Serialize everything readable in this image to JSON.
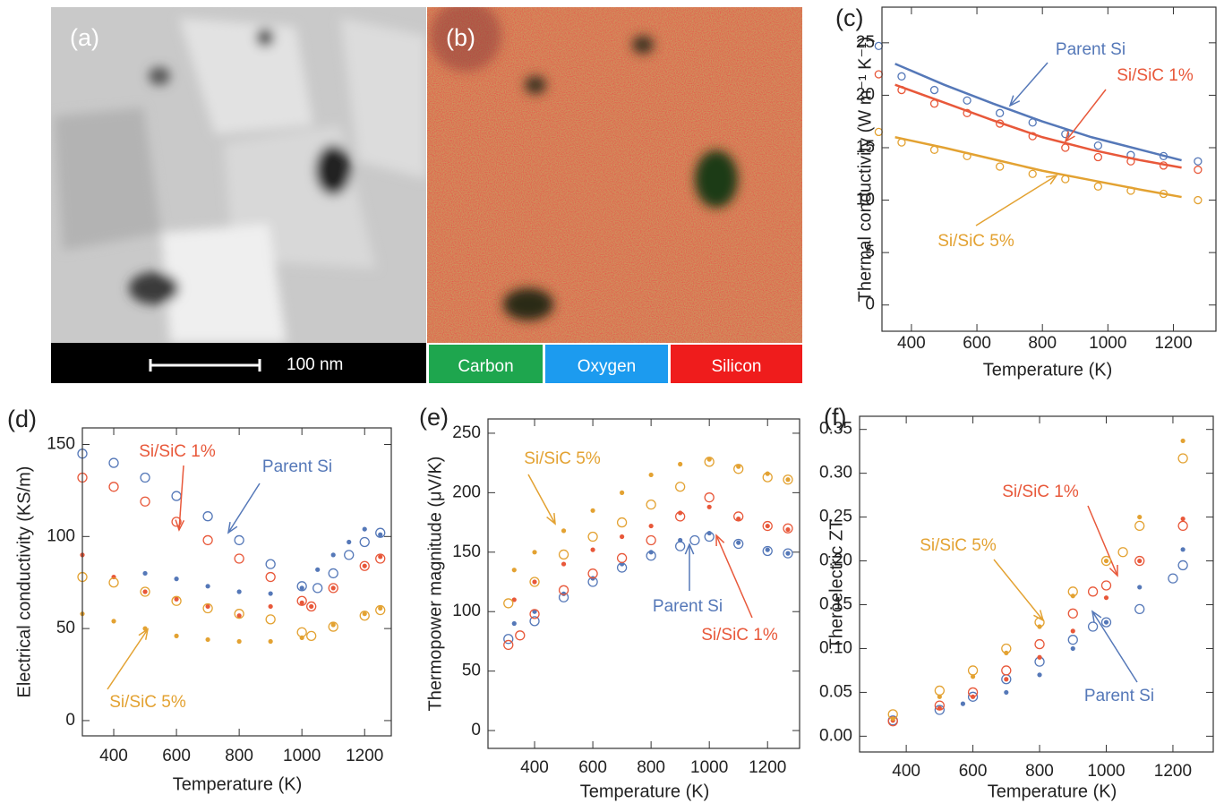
{
  "images": [
    {
      "label": "(a)",
      "scale_bar": "100 nm"
    },
    {
      "label": "(b)",
      "legend": [
        {
          "label": "Carbon",
          "color": "#1ea64e"
        },
        {
          "label": "Oxygen",
          "color": "#1c9bef"
        },
        {
          "label": "Silicon",
          "color": "#ef1c1c"
        }
      ]
    }
  ],
  "chart_data": [
    {
      "type": "scatter",
      "panel": "(c)",
      "x_label": "Temperature (K)",
      "y_label": "Thermal conductivity (W m⁻¹ K⁻¹)",
      "xlim": [
        310,
        1330
      ],
      "ylim": [
        -2.5,
        28.4
      ],
      "xticks": [
        400,
        600,
        800,
        1000,
        1200
      ],
      "yticks": [
        0,
        5,
        10,
        15,
        20,
        25
      ],
      "series": [
        {
          "name": "Parent Si",
          "color": "#5578b8",
          "open": {
            "x": [
              300,
              370,
              470,
              570,
              670,
              770,
              870,
              970,
              1070,
              1170,
              1275
            ],
            "values": [
              24.7,
              21.8,
              20.5,
              19.5,
              18.3,
              17.4,
              16.3,
              15.2,
              14.3,
              14.2,
              13.7
            ]
          },
          "fit_x": [
            350,
            500,
            650,
            800,
            950,
            1100,
            1225
          ],
          "fit": [
            23,
            21,
            19.2,
            17.5,
            16,
            14.8,
            13.8
          ]
        },
        {
          "name": "Si/SiC 1%",
          "color": "#e8583a",
          "open": {
            "x": [
              300,
              370,
              470,
              570,
              670,
              770,
              870,
              970,
              1070,
              1170,
              1275
            ],
            "values": [
              22,
              20.5,
              19.2,
              18.3,
              17.3,
              16.1,
              15,
              14.1,
              13.7,
              13.3,
              12.9
            ]
          },
          "fit_x": [
            350,
            500,
            650,
            800,
            950,
            1100,
            1225
          ],
          "fit": [
            21,
            19.3,
            17.6,
            16,
            14.8,
            13.8,
            13.1
          ]
        },
        {
          "name": "Si/SiC 5%",
          "color": "#e3a232",
          "open": {
            "x": [
              300,
              370,
              470,
              570,
              670,
              770,
              870,
              970,
              1070,
              1170,
              1275
            ],
            "values": [
              16.5,
              15.5,
              14.8,
              14.2,
              13.2,
              12.5,
              12,
              11.3,
              10.9,
              10.6,
              10
            ]
          },
          "fit_x": [
            350,
            500,
            650,
            800,
            950,
            1100,
            1225
          ],
          "fit": [
            16,
            15,
            13.9,
            12.8,
            11.9,
            11,
            10.3
          ]
        }
      ]
    },
    {
      "type": "scatter",
      "panel": "(d)",
      "x_label": "Temperature (K)",
      "y_label": "Electrical conductivity (KS/m)",
      "xlim": [
        300,
        1285
      ],
      "ylim": [
        -8.3,
        159
      ],
      "xticks": [
        400,
        600,
        800,
        1000,
        1200
      ],
      "yticks": [
        0,
        50,
        100,
        150
      ],
      "series": [
        {
          "name": "Parent Si",
          "color": "#5578b8",
          "open": {
            "x": [
              300,
              400,
              500,
              600,
              700,
              800,
              900,
              1000,
              1050,
              1100,
              1150,
              1200,
              1250
            ],
            "values": [
              145,
              140,
              132,
              122,
              111,
              98,
              85,
              73,
              72,
              80,
              90,
              97,
              102
            ]
          },
          "filled": {
            "x": [
              500,
              600,
              700,
              800,
              900,
              1000,
              1050,
              1100,
              1150,
              1200,
              1250
            ],
            "values": [
              80,
              77,
              73,
              70,
              69,
              72,
              82,
              90,
              97,
              104,
              101
            ]
          }
        },
        {
          "name": "Si/SiC 1%",
          "color": "#e8583a",
          "open": {
            "x": [
              300,
              400,
              500,
              600,
              700,
              800,
              900,
              1000,
              1030,
              1100,
              1200,
              1250
            ],
            "values": [
              132,
              127,
              119,
              108,
              98,
              88,
              78,
              65,
              62,
              72,
              84,
              88
            ]
          },
          "filled": {
            "x": [
              300,
              400,
              500,
              600,
              700,
              800,
              900,
              1000,
              1030,
              1100,
              1200,
              1250
            ],
            "values": [
              90,
              78,
              70,
              66,
              62,
              57,
              62,
              64,
              62,
              72,
              84,
              89
            ]
          }
        },
        {
          "name": "Si/SiC 5%",
          "color": "#e3a232",
          "open": {
            "x": [
              300,
              400,
              500,
              600,
              700,
              800,
              900,
              1000,
              1030,
              1100,
              1200,
              1250
            ],
            "values": [
              78,
              75,
              70,
              65,
              61,
              58,
              55,
              48,
              46,
              51,
              57,
              60
            ]
          },
          "filled": {
            "x": [
              300,
              400,
              500,
              600,
              700,
              800,
              900,
              1000,
              1100,
              1200,
              1250
            ],
            "values": [
              58,
              54,
              50,
              46,
              44,
              43,
              43,
              45,
              52,
              58,
              61
            ]
          }
        }
      ]
    },
    {
      "type": "scatter",
      "panel": "(e)",
      "x_label": "Temperature (K)",
      "y_label": "Thermopower magnitude (μV/K)",
      "xlim": [
        240,
        1310
      ],
      "ylim": [
        -15,
        262
      ],
      "xticks": [
        400,
        600,
        800,
        1000,
        1200
      ],
      "yticks": [
        0,
        50,
        100,
        150,
        200,
        250
      ],
      "series": [
        {
          "name": "Parent Si",
          "color": "#5578b8",
          "open": {
            "x": [
              310,
              400,
              500,
              600,
              700,
              800,
              900,
              950,
              1000,
              1100,
              1200,
              1270
            ],
            "values": [
              77,
              92,
              112,
              125,
              137,
              147,
              155,
              160,
              163,
              157,
              151,
              149
            ]
          },
          "filled": {
            "x": [
              330,
              400,
              500,
              600,
              700,
              800,
              900,
              1000,
              1100,
              1200,
              1270
            ],
            "values": [
              90,
              100,
              115,
              128,
              140,
              150,
              160,
              166,
              158,
              152,
              149
            ]
          }
        },
        {
          "name": "Si/SiC 1%",
          "color": "#e8583a",
          "open": {
            "x": [
              310,
              350,
              400,
              500,
              600,
              700,
              800,
              900,
              1000,
              1100,
              1200,
              1270
            ],
            "values": [
              72,
              80,
              98,
              118,
              132,
              145,
              160,
              180,
              196,
              180,
              172,
              170
            ]
          },
          "filled": {
            "x": [
              330,
              400,
              500,
              600,
              700,
              800,
              900,
              1000,
              1100,
              1200,
              1270
            ],
            "values": [
              110,
              125,
              140,
              152,
              163,
              172,
              183,
              188,
              178,
              172,
              169
            ]
          }
        },
        {
          "name": "Si/SiC 5%",
          "color": "#e3a232",
          "open": {
            "x": [
              310,
              400,
              500,
              600,
              700,
              800,
              900,
              1000,
              1100,
              1200,
              1270
            ],
            "values": [
              107,
              125,
              148,
              163,
              175,
              190,
              205,
              226,
              220,
              213,
              211
            ]
          },
          "filled": {
            "x": [
              330,
              400,
              500,
              600,
              700,
              800,
              900,
              1000,
              1100,
              1200,
              1270
            ],
            "values": [
              135,
              150,
              168,
              185,
              200,
              215,
              224,
              228,
              222,
              216,
              211
            ]
          }
        }
      ]
    },
    {
      "type": "scatter",
      "panel": "(f)",
      "x_label": "Temperature (K)",
      "y_label": "Theroelectric ZT",
      "xlim": [
        260,
        1321
      ],
      "ylim": [
        -0.018,
        0.365
      ],
      "xticks": [
        400,
        600,
        800,
        1000,
        1200
      ],
      "yticks": [
        {
          "value": 0,
          "label": "0.00"
        },
        0.05,
        {
          "value": 0.1,
          "label": "0.10"
        },
        0.15,
        {
          "value": 0.2,
          "label": "0.20"
        },
        0.25,
        {
          "value": 0.3,
          "label": "0.30"
        },
        0.35
      ],
      "series": [
        {
          "name": "Parent Si",
          "color": "#5578b8",
          "open": {
            "x": [
              360,
              500,
              600,
              700,
              800,
              900,
              960,
              1000,
              1100,
              1200,
              1230
            ],
            "values": [
              0.018,
              0.03,
              0.045,
              0.065,
              0.085,
              0.11,
              0.125,
              0.13,
              0.145,
              0.18,
              0.195
            ]
          },
          "filled": {
            "x": [
              570,
              700,
              800,
              900,
              1000,
              1100,
              1230
            ],
            "values": [
              0.037,
              0.05,
              0.07,
              0.1,
              0.13,
              0.17,
              0.213
            ]
          }
        },
        {
          "name": "Si/SiC 1%",
          "color": "#e8583a",
          "open": {
            "x": [
              360,
              500,
              600,
              700,
              800,
              900,
              960,
              1000,
              1100,
              1230
            ],
            "values": [
              0.017,
              0.035,
              0.05,
              0.075,
              0.105,
              0.14,
              0.165,
              0.172,
              0.2,
              0.24
            ]
          },
          "filled": {
            "x": [
              360,
              500,
              600,
              700,
              800,
              900,
              1000,
              1100,
              1230
            ],
            "values": [
              0.018,
              0.032,
              0.045,
              0.065,
              0.09,
              0.12,
              0.158,
              0.2,
              0.248
            ]
          }
        },
        {
          "name": "Si/SiC 5%",
          "color": "#e3a232",
          "open": {
            "x": [
              360,
              500,
              600,
              700,
              800,
              900,
              1000,
              1050,
              1100,
              1230
            ],
            "values": [
              0.025,
              0.052,
              0.075,
              0.1,
              0.13,
              0.165,
              0.2,
              0.21,
              0.24,
              0.317
            ]
          },
          "filled": {
            "x": [
              360,
              500,
              600,
              700,
              800,
              900,
              1000,
              1100,
              1230
            ],
            "values": [
              0.02,
              0.045,
              0.068,
              0.095,
              0.125,
              0.16,
              0.2,
              0.25,
              0.337
            ]
          }
        }
      ]
    }
  ]
}
